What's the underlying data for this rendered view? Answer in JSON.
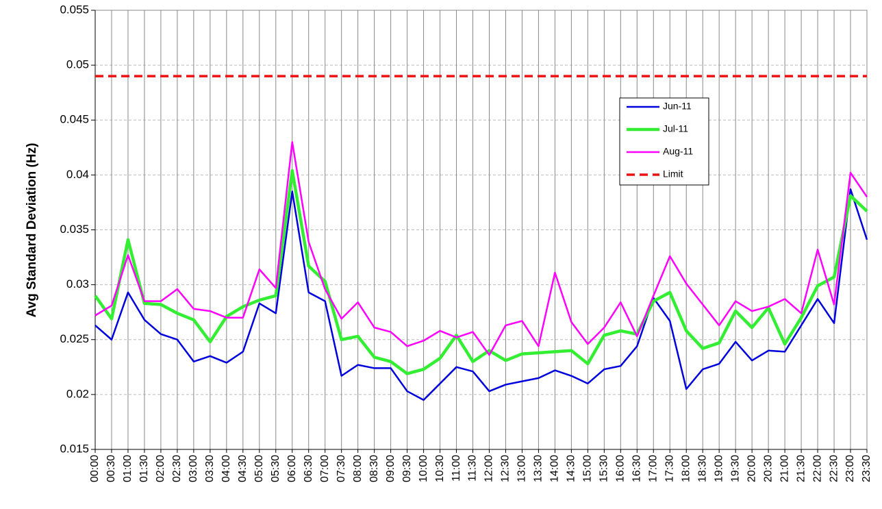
{
  "chart_data": {
    "type": "line",
    "y_label": "Avg Standard Deviation (Hz)",
    "categories": [
      "00:00",
      "00:30",
      "01:00",
      "01:30",
      "02:00",
      "02:30",
      "03:00",
      "03:30",
      "04:00",
      "04:30",
      "05:00",
      "05:30",
      "06:00",
      "06:30",
      "07:00",
      "07:30",
      "08:00",
      "08:30",
      "09:00",
      "09:30",
      "10:00",
      "10:30",
      "11:00",
      "11:30",
      "12:00",
      "12:30",
      "13:00",
      "13:30",
      "14:00",
      "14:30",
      "15:00",
      "15:30",
      "16:00",
      "16:30",
      "17:00",
      "17:30",
      "18:00",
      "18:30",
      "19:00",
      "19:30",
      "20:00",
      "20:30",
      "21:00",
      "21:30",
      "22:00",
      "22:30",
      "23:00",
      "23:30"
    ],
    "series": [
      {
        "name": "Jun-11",
        "color": "#0000dd",
        "line_width": 2.5,
        "values": [
          0.0263,
          0.025,
          0.0293,
          0.0268,
          0.0255,
          0.025,
          0.023,
          0.0235,
          0.0229,
          0.0239,
          0.0283,
          0.0274,
          0.0385,
          0.0293,
          0.0285,
          0.0217,
          0.0227,
          0.0224,
          0.0224,
          0.0203,
          0.0195,
          0.021,
          0.0225,
          0.0221,
          0.0203,
          0.0209,
          0.0212,
          0.0215,
          0.0222,
          0.0217,
          0.021,
          0.0223,
          0.0226,
          0.0244,
          0.0288,
          0.0267,
          0.0205,
          0.0223,
          0.0228,
          0.0248,
          0.0231,
          0.024,
          0.0239,
          0.0263,
          0.0287,
          0.0265,
          0.0387,
          0.0341
        ]
      },
      {
        "name": "Jul-11",
        "color": "#33ee33",
        "line_width": 4.5,
        "values": [
          0.029,
          0.0269,
          0.0341,
          0.0283,
          0.0282,
          0.0274,
          0.0268,
          0.0248,
          0.0271,
          0.028,
          0.0286,
          0.029,
          0.0404,
          0.0317,
          0.0303,
          0.025,
          0.0253,
          0.0234,
          0.023,
          0.0219,
          0.0223,
          0.0233,
          0.0254,
          0.023,
          0.024,
          0.0231,
          0.0237,
          0.0238,
          0.0239,
          0.024,
          0.0228,
          0.0254,
          0.0258,
          0.0255,
          0.0285,
          0.0293,
          0.0258,
          0.0242,
          0.0247,
          0.0276,
          0.0261,
          0.0279,
          0.0246,
          0.027,
          0.0299,
          0.0307,
          0.0381,
          0.0367
        ]
      },
      {
        "name": "Aug-11",
        "color": "#ff00ff",
        "line_width": 2.5,
        "values": [
          0.0272,
          0.0281,
          0.0327,
          0.0285,
          0.0285,
          0.0296,
          0.0278,
          0.0276,
          0.027,
          0.027,
          0.0314,
          0.0297,
          0.043,
          0.0339,
          0.0296,
          0.0269,
          0.0284,
          0.0261,
          0.0257,
          0.0244,
          0.0249,
          0.0258,
          0.0252,
          0.0257,
          0.0236,
          0.0263,
          0.0267,
          0.0244,
          0.0311,
          0.0266,
          0.0246,
          0.0261,
          0.0284,
          0.0253,
          0.029,
          0.0326,
          0.0301,
          0.0282,
          0.0263,
          0.0285,
          0.0276,
          0.028,
          0.0287,
          0.0274,
          0.0332,
          0.0282,
          0.0402,
          0.038
        ]
      },
      {
        "name": "Limit",
        "color": "#ee1111",
        "line_width": 3.5,
        "style": "dashed",
        "values": [
          0.049,
          0.049,
          0.049,
          0.049,
          0.049,
          0.049,
          0.049,
          0.049,
          0.049,
          0.049,
          0.049,
          0.049,
          0.049,
          0.049,
          0.049,
          0.049,
          0.049,
          0.049,
          0.049,
          0.049,
          0.049,
          0.049,
          0.049,
          0.049,
          0.049,
          0.049,
          0.049,
          0.049,
          0.049,
          0.049,
          0.049,
          0.049,
          0.049,
          0.049,
          0.049,
          0.049,
          0.049,
          0.049,
          0.049,
          0.049,
          0.049,
          0.049,
          0.049,
          0.049,
          0.049,
          0.049,
          0.049,
          0.049
        ]
      }
    ],
    "ylim": [
      0.015,
      0.055
    ],
    "yticks": [
      0.015,
      0.02,
      0.025,
      0.03,
      0.035,
      0.04,
      0.045,
      0.05,
      0.055
    ],
    "grid": true,
    "legend_position": "upper right"
  }
}
